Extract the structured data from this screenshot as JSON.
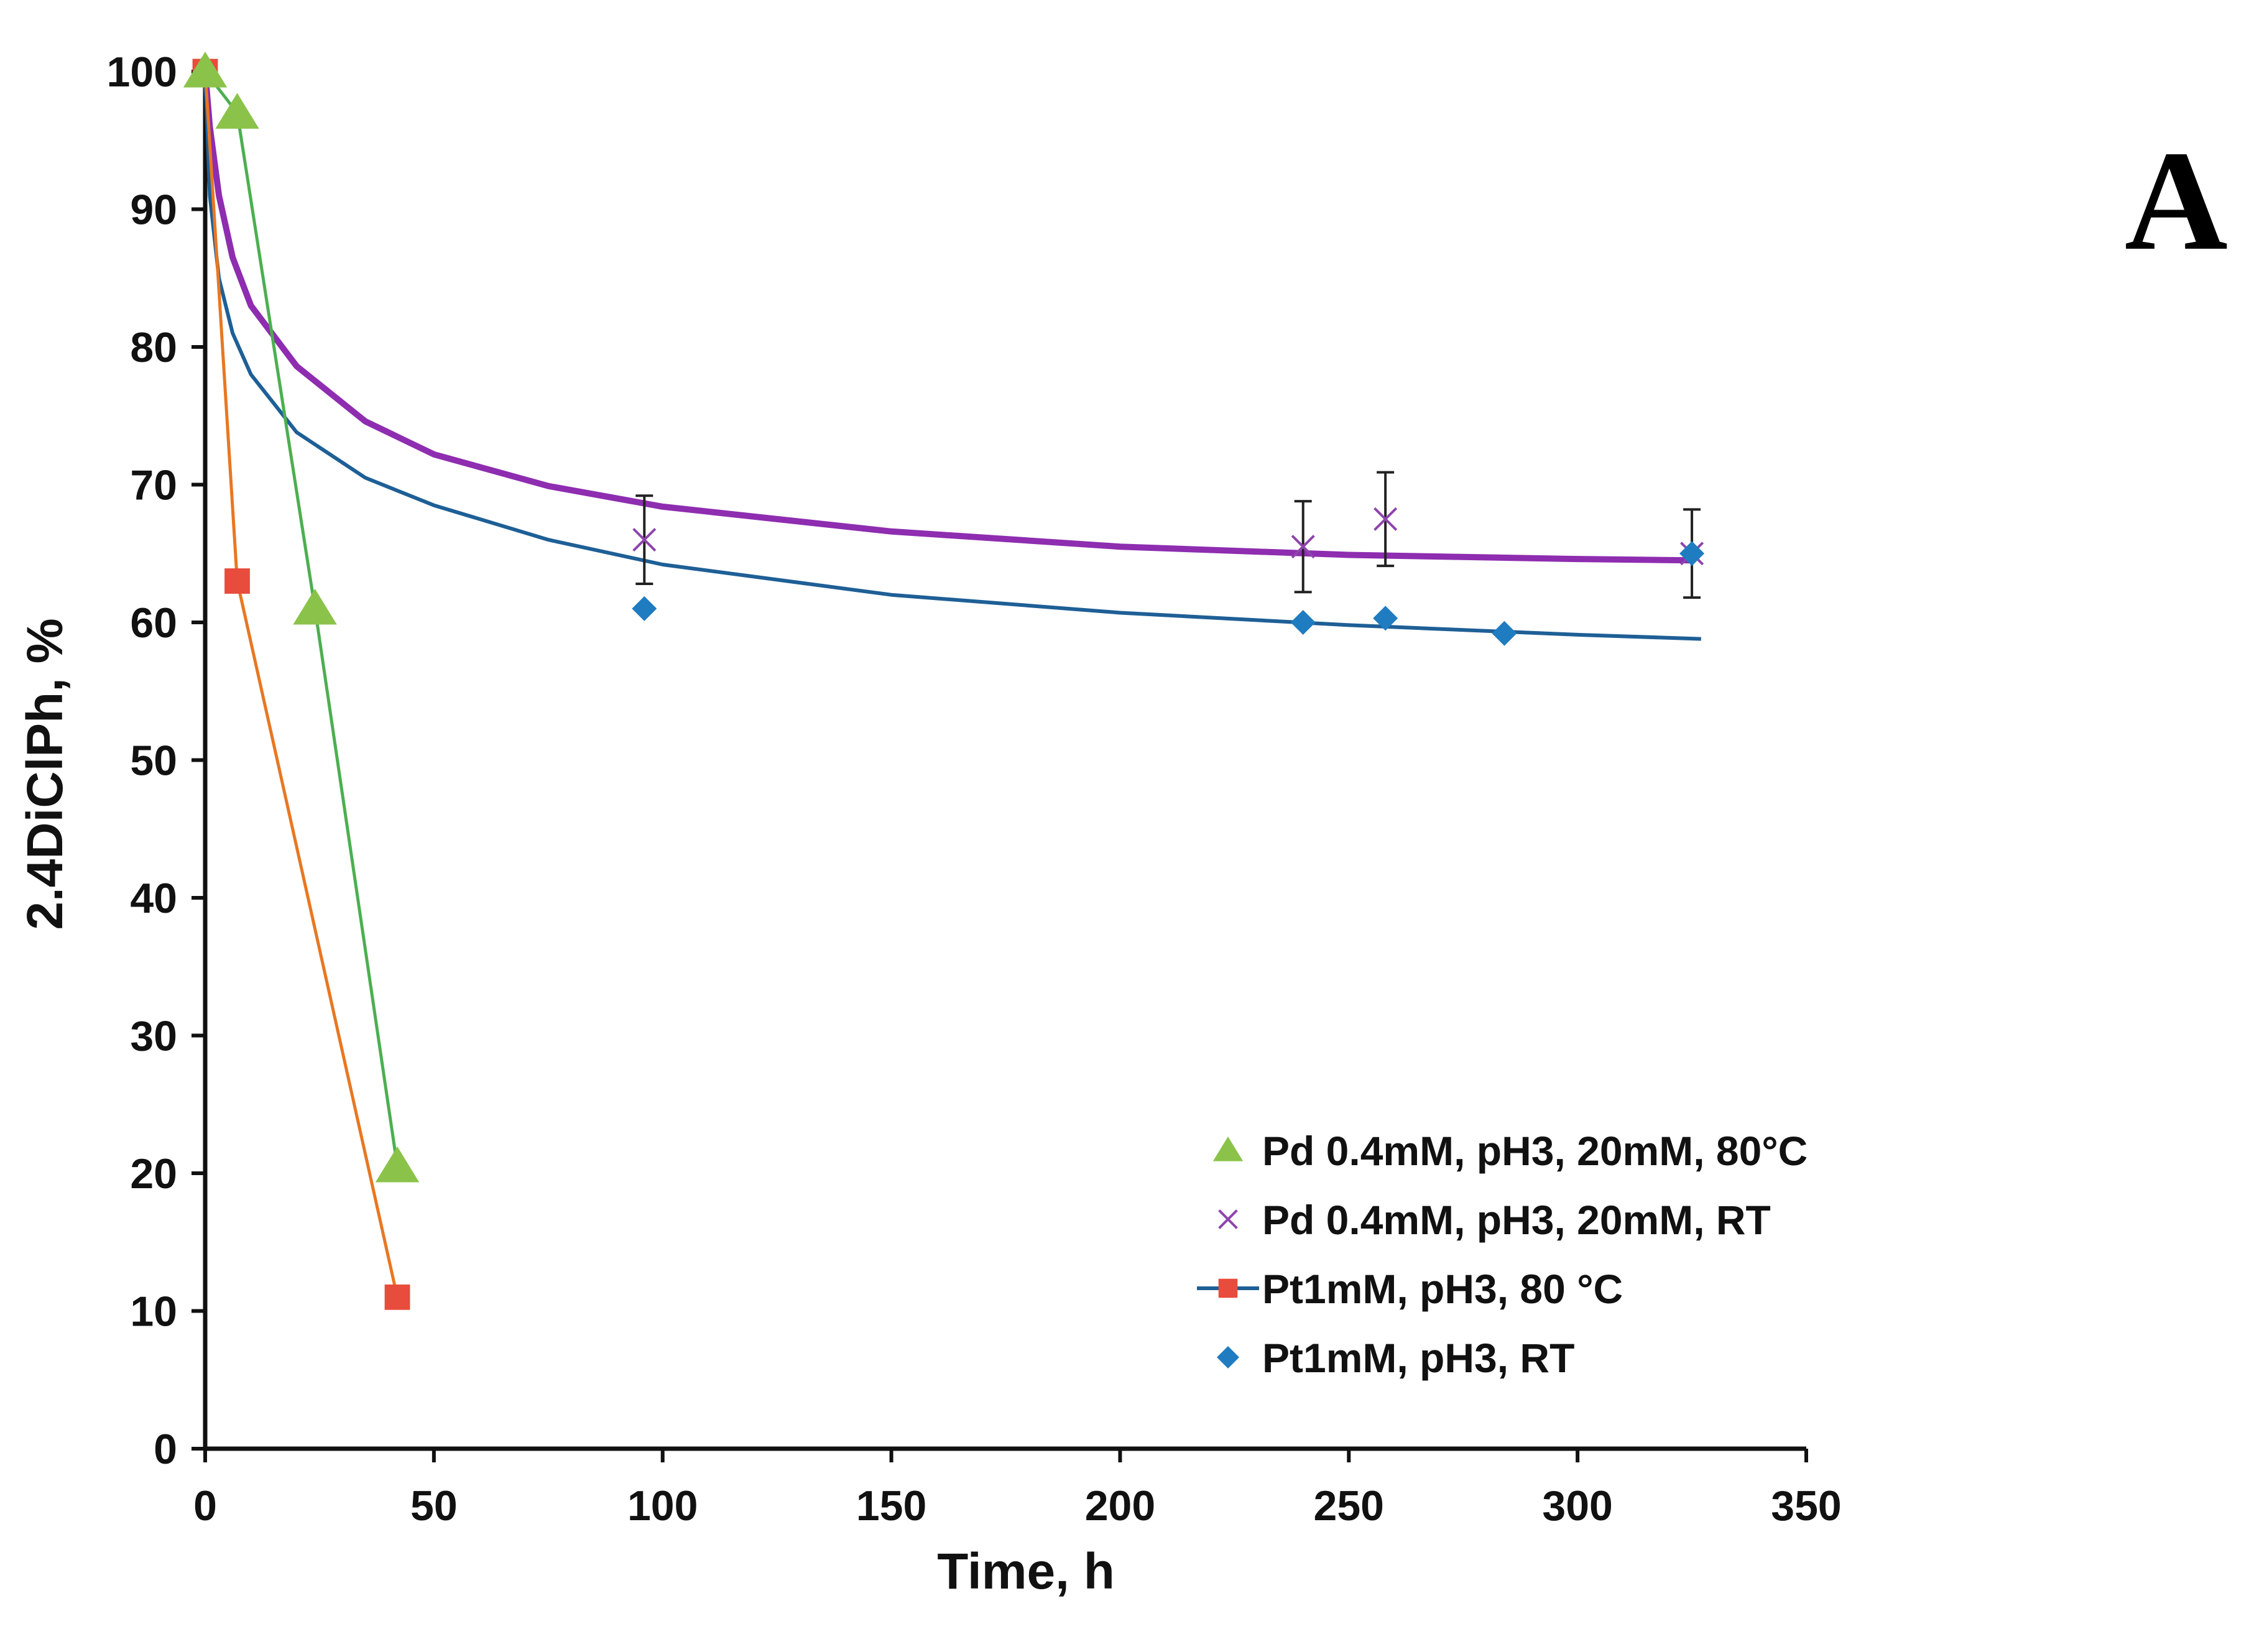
{
  "panel_label": "A",
  "colors": {
    "pd80": "#8BC34A",
    "pd80_line": "#4CAF50",
    "pdRT": "#8E44AD",
    "pdRT_fit": "#8E2DB0",
    "pt80": "#E84C3D",
    "pt80_line": "#E87722",
    "ptRT": "#1F7CC1",
    "ptRT_fit": "#1E5F96",
    "axis": "#111111",
    "errorbar": "#222222"
  },
  "chart_data": {
    "type": "scatter",
    "title": "",
    "xlabel": "Time, h",
    "ylabel": "2.4DiClPh, %",
    "xlim": [
      0,
      350
    ],
    "ylim": [
      0,
      100
    ],
    "xticks": [
      0,
      50,
      100,
      150,
      200,
      250,
      300,
      350
    ],
    "yticks": [
      0,
      10,
      20,
      30,
      40,
      50,
      60,
      70,
      80,
      90,
      100
    ],
    "legend_position": "bottom-right",
    "series": [
      {
        "name": "Pd 0.4mM, pH3, 20mM, 80°C",
        "marker": "triangle",
        "color_key": "pd80",
        "line_color_key": "pd80_line",
        "connected": true,
        "points": [
          [
            0,
            100
          ],
          [
            7,
            97
          ],
          [
            24,
            61
          ],
          [
            42,
            20.5
          ]
        ]
      },
      {
        "name": "Pd 0.4mM, pH3, 20mM, RT",
        "marker": "x",
        "color_key": "pdRT",
        "connected": false,
        "points": [
          [
            0,
            100
          ],
          [
            96,
            66
          ],
          [
            240,
            65.5
          ],
          [
            258,
            67.5
          ],
          [
            325,
            65
          ]
        ],
        "errors": [
          0,
          3.2,
          3.3,
          3.4,
          3.2
        ],
        "fit": {
          "color_key": "pdRT_fit",
          "range": [
            0,
            325
          ],
          "points": [
            [
              0,
              100
            ],
            [
              1,
              96
            ],
            [
              3,
              91
            ],
            [
              6,
              86.5
            ],
            [
              10,
              83
            ],
            [
              20,
              78.6
            ],
            [
              35,
              74.6
            ],
            [
              50,
              72.2
            ],
            [
              75,
              69.9
            ],
            [
              100,
              68.4
            ],
            [
              150,
              66.6
            ],
            [
              200,
              65.5
            ],
            [
              250,
              64.9
            ],
            [
              300,
              64.6
            ],
            [
              325,
              64.5
            ]
          ]
        }
      },
      {
        "name": "Pt1mM, pH3, 80 °C",
        "marker": "square",
        "color_key": "pt80",
        "line_color_key": "pt80_line",
        "connected": true,
        "points": [
          [
            0,
            100
          ],
          [
            7,
            63
          ],
          [
            42,
            11
          ]
        ]
      },
      {
        "name": "Pt1mM, pH3, RT",
        "marker": "diamond",
        "color_key": "ptRT",
        "connected": false,
        "points": [
          [
            0,
            100
          ],
          [
            96,
            61
          ],
          [
            240,
            60
          ],
          [
            258,
            60.3
          ],
          [
            284,
            59.2
          ],
          [
            325,
            65
          ]
        ],
        "fit": {
          "color_key": "ptRT_fit",
          "range": [
            0,
            327
          ],
          "points": [
            [
              0,
              100
            ],
            [
              1,
              91
            ],
            [
              3,
              85
            ],
            [
              6,
              81
            ],
            [
              10,
              78
            ],
            [
              20,
              73.8
            ],
            [
              35,
              70.5
            ],
            [
              50,
              68.5
            ],
            [
              75,
              66
            ],
            [
              100,
              64.2
            ],
            [
              150,
              62
            ],
            [
              200,
              60.7
            ],
            [
              250,
              59.8
            ],
            [
              300,
              59.1
            ],
            [
              327,
              58.8
            ]
          ]
        }
      }
    ]
  }
}
